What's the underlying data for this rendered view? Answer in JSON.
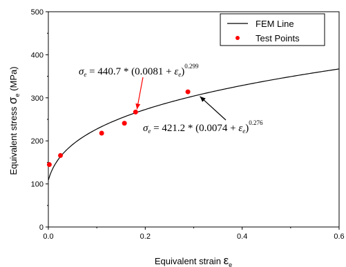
{
  "chart_data": {
    "type": "scatter",
    "xlabel": "Equivalent strain",
    "xlabel_symbol": "ε",
    "xlabel_subscript": "e",
    "ylabel": "Equivalent stress",
    "ylabel_symbol": "σ",
    "ylabel_subscript": "e",
    "ylabel_unit": "(MPa)",
    "xlim": [
      0.0,
      0.6
    ],
    "ylim": [
      0,
      500
    ],
    "xticks": [
      0.0,
      0.2,
      0.4,
      0.6
    ],
    "xtick_labels": [
      "0.0",
      "0.2",
      "0.4",
      "0.6"
    ],
    "yticks": [
      0,
      100,
      200,
      300,
      400,
      500
    ],
    "ytick_labels": [
      "0",
      "100",
      "200",
      "300",
      "400",
      "500"
    ],
    "grid": false,
    "legend_position": "top-right",
    "legend": [
      {
        "label": "FEM Line",
        "kind": "line"
      },
      {
        "label": "Test Points",
        "kind": "marker"
      }
    ],
    "series": [
      {
        "name": "FEM Line",
        "kind": "line",
        "color": "#000000",
        "model": {
          "a": 421.2,
          "b": 0.0074,
          "n": 0.276
        }
      },
      {
        "name": "Test Points",
        "kind": "scatter",
        "color": "#ff0000",
        "points": [
          {
            "x": 0.002,
            "y": 145
          },
          {
            "x": 0.025,
            "y": 166
          },
          {
            "x": 0.11,
            "y": 218
          },
          {
            "x": 0.157,
            "y": 241
          },
          {
            "x": 0.18,
            "y": 267
          },
          {
            "x": 0.288,
            "y": 314
          }
        ]
      }
    ],
    "annotations": [
      {
        "name": "test-equation",
        "coef": "440.7",
        "offset": "0.0081",
        "exponent": "0.299",
        "arrow_color": "#ff0000",
        "target": {
          "x": 0.18,
          "y": 267
        }
      },
      {
        "name": "fem-equation",
        "coef": "421.2",
        "offset": "0.0074",
        "exponent": "0.276",
        "arrow_color": "#000000",
        "target": {
          "x": 0.31,
          "y": 308
        }
      }
    ]
  }
}
